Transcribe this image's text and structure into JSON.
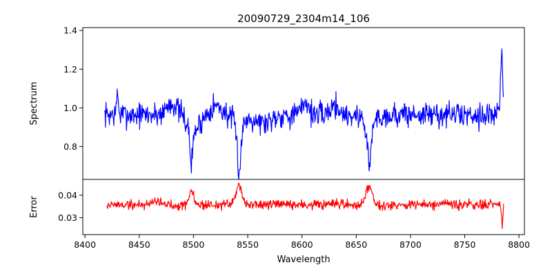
{
  "chart_data": {
    "type": "line",
    "title": "20090729_2304m14_106",
    "xlabel": "Wavelength",
    "xlim": [
      8398,
      8805
    ],
    "xticks": [
      8400,
      8450,
      8500,
      8550,
      8600,
      8650,
      8700,
      8750,
      8800
    ],
    "xtick_labels": [
      "8400",
      "8450",
      "8500",
      "8550",
      "8600",
      "8650",
      "8700",
      "8750",
      "8800"
    ],
    "panels": [
      {
        "name": "spectrum",
        "ylabel": "Spectrum",
        "ylim": [
          0.63,
          1.415
        ],
        "yticks": [
          0.8,
          1.0,
          1.2,
          1.4
        ],
        "ytick_labels": [
          "0.8",
          "1.0",
          "1.2",
          "1.4"
        ],
        "color": "#0000ff",
        "series": {
          "name": "Spectrum",
          "x_start": 8418,
          "x_end": 8786,
          "baseline": 0.965,
          "noise": 0.032,
          "seed": 7,
          "features": [
            {
              "center": 8498,
              "depth": 0.22,
              "width": 1.6,
              "profile": "lorentz"
            },
            {
              "center": 8542,
              "depth": 0.31,
              "width": 2.0,
              "profile": "lorentz"
            },
            {
              "center": 8662,
              "depth": 0.28,
              "width": 2.0,
              "profile": "lorentz"
            },
            {
              "center": 8480,
              "depth": -0.06,
              "width": 5,
              "profile": "gauss"
            },
            {
              "center": 8520,
              "depth": -0.05,
              "width": 6,
              "profile": "gauss"
            },
            {
              "center": 8603,
              "depth": -0.07,
              "width": 3,
              "profile": "gauss"
            },
            {
              "center": 8630,
              "depth": -0.05,
              "width": 4,
              "profile": "gauss"
            },
            {
              "center": 8502,
              "depth": 0.05,
              "width": 6,
              "profile": "gauss"
            },
            {
              "center": 8565,
              "depth": 0.04,
              "width": 6,
              "profile": "gauss"
            },
            {
              "center": 8430,
              "depth": -0.12,
              "width": 0.7,
              "profile": "gauss"
            },
            {
              "center": 8784,
              "depth": -0.34,
              "width": 0.9,
              "profile": "gauss"
            }
          ]
        }
      },
      {
        "name": "error",
        "ylabel": "Error",
        "ylim": [
          0.0225,
          0.047
        ],
        "yticks": [
          0.03,
          0.04
        ],
        "ytick_labels": [
          "0.03",
          "0.04"
        ],
        "color": "#ff0000",
        "series": {
          "name": "Error",
          "x_start": 8420,
          "x_end": 8786,
          "baseline": 0.0357,
          "noise": 0.0011,
          "seed": 19,
          "features": [
            {
              "center": 8498,
              "depth": -0.006,
              "width": 2.2,
              "profile": "gauss"
            },
            {
              "center": 8542,
              "depth": -0.009,
              "width": 2.8,
              "profile": "gauss"
            },
            {
              "center": 8662,
              "depth": -0.009,
              "width": 2.8,
              "profile": "gauss"
            },
            {
              "center": 8465,
              "depth": -0.002,
              "width": 4,
              "profile": "gauss"
            },
            {
              "center": 8784.5,
              "depth": 0.009,
              "width": 0.6,
              "profile": "gauss"
            }
          ]
        }
      }
    ]
  }
}
